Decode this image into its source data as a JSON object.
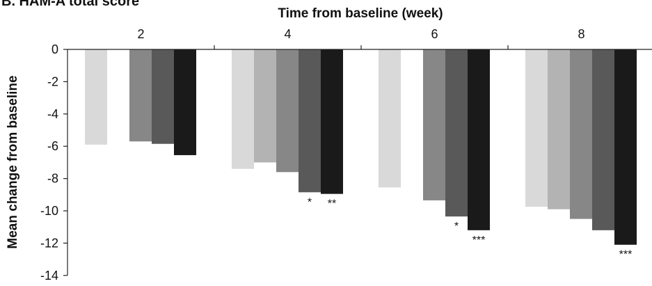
{
  "panel_title": "B. HAM-A total score",
  "chart_data": {
    "type": "bar",
    "title": "B. HAM-A total score",
    "xlabel": "Time from baseline (week)",
    "ylabel": "Mean change from baseline",
    "categories": [
      "2",
      "4",
      "6",
      "8"
    ],
    "ylim": [
      -14,
      0
    ],
    "yticks": [
      0,
      -2,
      -4,
      -6,
      -8,
      -10,
      -12,
      -14
    ],
    "x_axis_position": "top",
    "grid": false,
    "legend": "none",
    "series": [
      {
        "color": "#d9d9d9",
        "values": [
          -5.9,
          -7.4,
          -8.55,
          -9.75
        ]
      },
      {
        "color": "#b3b3b3",
        "values": [
          null,
          -7.0,
          null,
          -9.9
        ]
      },
      {
        "color": "#878787",
        "values": [
          -5.7,
          -7.6,
          -9.35,
          -10.5
        ]
      },
      {
        "color": "#595959",
        "values": [
          -5.85,
          -8.85,
          -10.35,
          -11.2
        ]
      },
      {
        "color": "#1a1a1a",
        "values": [
          -6.55,
          -8.95,
          -11.2,
          -12.1
        ]
      }
    ],
    "annotations": [
      {
        "category": "4",
        "series_index": 3,
        "text": "*"
      },
      {
        "category": "4",
        "series_index": 4,
        "text": "**"
      },
      {
        "category": "6",
        "series_index": 3,
        "text": "*"
      },
      {
        "category": "6",
        "series_index": 4,
        "text": "***"
      },
      {
        "category": "8",
        "series_index": 4,
        "text": "***"
      }
    ]
  }
}
